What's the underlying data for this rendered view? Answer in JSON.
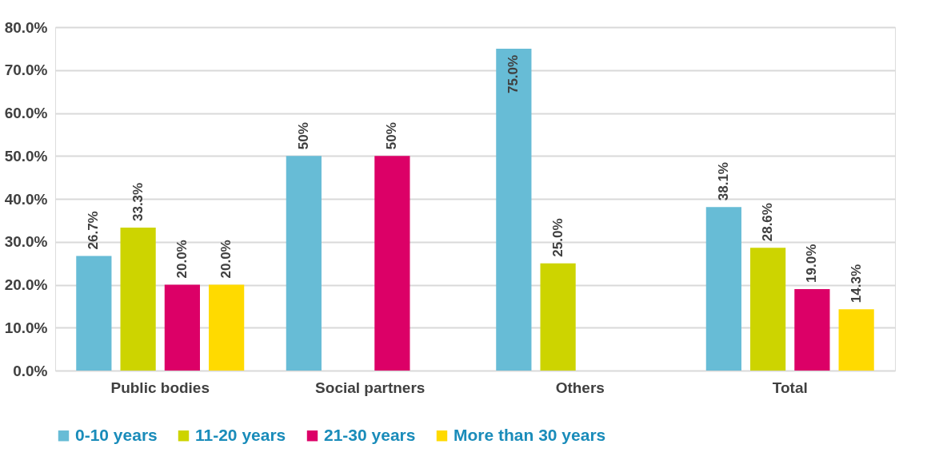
{
  "chart_data": {
    "type": "bar",
    "categories": [
      "Public bodies",
      "Social partners",
      "Others",
      "Total"
    ],
    "series": [
      {
        "name": "0-10 years",
        "color": "#67bcd6",
        "values": [
          26.7,
          50,
          75.0,
          38.1
        ],
        "value_labels": [
          "26.7%",
          "50%",
          "75.0%",
          "38.1%"
        ]
      },
      {
        "name": "11-20 years",
        "color": "#cdd400",
        "values": [
          33.3,
          null,
          25.0,
          28.6
        ],
        "value_labels": [
          "33.3%",
          null,
          "25.0%",
          "28.6%"
        ]
      },
      {
        "name": "21-30 years",
        "color": "#dc0067",
        "values": [
          20.0,
          50,
          null,
          19.0
        ],
        "value_labels": [
          "20.0%",
          "50%",
          null,
          "19.0%"
        ]
      },
      {
        "name": "More than 30 years",
        "color": "#ffda00",
        "values": [
          20.0,
          null,
          null,
          14.3
        ],
        "value_labels": [
          "20.0%",
          null,
          null,
          "14.3%"
        ]
      }
    ],
    "ylim": [
      0,
      80
    ],
    "yticks": [
      {
        "value": 0,
        "label": "0.0%"
      },
      {
        "value": 10,
        "label": "10.0%"
      },
      {
        "value": 20,
        "label": "20.0%"
      },
      {
        "value": 30,
        "label": "30.0%"
      },
      {
        "value": 40,
        "label": "40.0%"
      },
      {
        "value": 50,
        "label": "50.0%"
      },
      {
        "value": 60,
        "label": "60.0%"
      },
      {
        "value": 70,
        "label": "70.0%"
      },
      {
        "value": 80,
        "label": "80.0%"
      }
    ],
    "grid": "y",
    "legend": "bottom"
  }
}
